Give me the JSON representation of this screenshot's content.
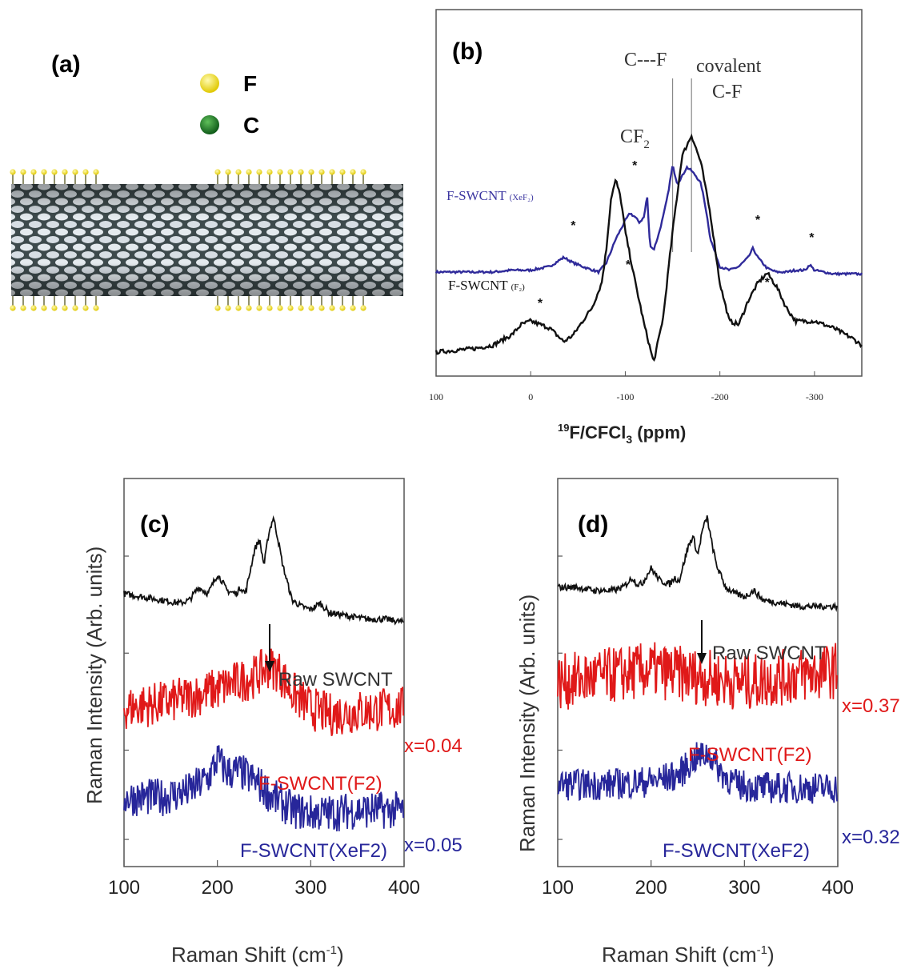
{
  "panels": {
    "a": {
      "label": "(a)",
      "legend": [
        {
          "symbol": "F",
          "color": "#f2dc1c"
        },
        {
          "symbol": "C",
          "color": "#1b7a2a"
        }
      ]
    },
    "b": {
      "label": "(b)",
      "xlabel_sup": "19",
      "xlabel_main": "F/CFCl",
      "xlabel_sub": "3",
      "xlabel_unit": " (ppm)",
      "annotations": {
        "cf": "C---F",
        "covalent1": "covalent",
        "covalent2": "C-F",
        "cf2_main": "CF",
        "cf2_sub": "2",
        "xef2_label": "F-SWCNT",
        "xef2_suffix": "(XeF₂)",
        "f2_label": "F-SWCNT",
        "f2_suffix": "(F₂)"
      }
    },
    "c": {
      "label": "(c)",
      "raw_label": "Raw SWCNT",
      "red_label": "F-SWCNT(F2)",
      "blue_label": "F-SWCNT(XeF2)",
      "red_x": "x=0.04",
      "blue_x": "x=0.05"
    },
    "d": {
      "label": "(d)",
      "raw_label": "Raw SWCNT",
      "red_label": "F-SWCNT(F2)",
      "blue_label": "F-SWCNT(XeF2)",
      "red_x": "x=0.37",
      "blue_x": "x=0.32"
    },
    "raman_ylabel": "Raman Intensity (Arb. units)",
    "raman_xlabel_main": "Raman Shift (cm",
    "raman_xlabel_sup": "-1",
    "raman_xlabel_end": ")"
  },
  "chart_data": [
    {
      "panel": "b",
      "type": "line",
      "xlim": [
        100,
        -350
      ],
      "xticks": [
        100,
        0,
        -100,
        -200,
        -300
      ],
      "xticklabels": [
        "100",
        "0",
        "-100",
        "-200",
        "-300"
      ],
      "peak_markers_ppm": [
        -150,
        -170
      ],
      "series": [
        {
          "name": "F-SWCNT (XeF₂)",
          "color": "#2f2a9a",
          "x": [
            100,
            60,
            40,
            20,
            0,
            -20,
            -35,
            -45,
            -60,
            -72,
            -80,
            -90,
            -100,
            -105,
            -110,
            -115,
            -120,
            -123,
            -126,
            -130,
            -135,
            -140,
            -145,
            -150,
            -155,
            -160,
            -165,
            -170,
            -175,
            -180,
            -185,
            -190,
            -200,
            -210,
            -220,
            -230,
            -235,
            -240,
            -250,
            -260,
            -270,
            -280,
            -290,
            -295,
            -300,
            -310,
            -320,
            -330,
            -350
          ],
          "y": [
            0.3,
            0.3,
            0.3,
            0.31,
            0.31,
            0.33,
            0.38,
            0.35,
            0.32,
            0.3,
            0.35,
            0.48,
            0.58,
            0.62,
            0.6,
            0.57,
            0.6,
            0.72,
            0.45,
            0.42,
            0.5,
            0.6,
            0.72,
            0.88,
            0.78,
            0.82,
            0.87,
            0.85,
            0.82,
            0.78,
            0.65,
            0.48,
            0.33,
            0.31,
            0.33,
            0.38,
            0.43,
            0.38,
            0.32,
            0.3,
            0.3,
            0.31,
            0.31,
            0.34,
            0.31,
            0.3,
            0.29,
            0.29,
            0.29
          ]
        },
        {
          "name": "F-SWCNT (F₂)",
          "color": "#111111",
          "x": [
            100,
            60,
            40,
            20,
            10,
            0,
            -20,
            -35,
            -45,
            -55,
            -65,
            -75,
            -80,
            -85,
            -90,
            -95,
            -100,
            -105,
            -110,
            -120,
            -130,
            -140,
            -150,
            -160,
            -170,
            -180,
            -190,
            -200,
            -210,
            -220,
            -230,
            -240,
            -250,
            -260,
            -270,
            -280,
            -290,
            -300,
            -320,
            -340,
            -350
          ],
          "y": [
            0.05,
            0.06,
            0.07,
            0.1,
            0.13,
            0.14,
            0.12,
            0.08,
            0.1,
            0.14,
            0.18,
            0.25,
            0.35,
            0.5,
            0.55,
            0.5,
            0.4,
            0.33,
            0.26,
            0.13,
            0.02,
            0.15,
            0.4,
            0.62,
            0.68,
            0.6,
            0.45,
            0.25,
            0.14,
            0.13,
            0.2,
            0.25,
            0.28,
            0.24,
            0.18,
            0.14,
            0.14,
            0.14,
            0.12,
            0.09,
            0.07
          ]
        }
      ]
    },
    {
      "panel": "c",
      "type": "line",
      "xlabel": "Raman Shift (cm-1)",
      "ylabel": "Raman Intensity (Arb. units)",
      "xlim": [
        100,
        400
      ],
      "xticks": [
        100,
        200,
        300,
        400
      ],
      "series": [
        {
          "name": "Raw SWCNT",
          "color": "#111111",
          "noise": 0.01,
          "x": [
            100,
            120,
            140,
            160,
            170,
            180,
            185,
            190,
            200,
            205,
            210,
            220,
            225,
            230,
            240,
            245,
            250,
            255,
            260,
            265,
            270,
            280,
            290,
            300,
            310,
            320,
            340,
            360,
            380,
            400
          ],
          "y": [
            0.76,
            0.75,
            0.74,
            0.73,
            0.74,
            0.78,
            0.77,
            0.76,
            0.82,
            0.8,
            0.77,
            0.76,
            0.78,
            0.76,
            0.9,
            0.93,
            0.85,
            0.95,
            1.0,
            0.93,
            0.85,
            0.74,
            0.72,
            0.71,
            0.73,
            0.7,
            0.69,
            0.68,
            0.68,
            0.67
          ]
        },
        {
          "name": "F-SWCNT(F2)",
          "color": "#e01919",
          "noise": 0.07,
          "x": [
            100,
            150,
            200,
            240,
            255,
            265,
            280,
            300,
            320,
            350,
            400
          ],
          "y": [
            0.4,
            0.42,
            0.46,
            0.5,
            0.53,
            0.52,
            0.45,
            0.4,
            0.38,
            0.39,
            0.4
          ]
        },
        {
          "name": "F-SWCNT(XeF2)",
          "color": "#27269a",
          "noise": 0.06,
          "x": [
            100,
            140,
            170,
            190,
            200,
            210,
            225,
            245,
            260,
            280,
            300,
            320,
            350,
            400
          ],
          "y": [
            0.12,
            0.12,
            0.14,
            0.18,
            0.24,
            0.2,
            0.2,
            0.16,
            0.12,
            0.08,
            0.07,
            0.07,
            0.08,
            0.08
          ]
        }
      ]
    },
    {
      "panel": "d",
      "type": "line",
      "xlabel": "Raman Shift (cm-1)",
      "ylabel": "Raman Intensity (Arb. units)",
      "xlim": [
        100,
        400
      ],
      "xticks": [
        100,
        200,
        300,
        400
      ],
      "series": [
        {
          "name": "Raw SWCNT",
          "color": "#111111",
          "noise": 0.01,
          "x": [
            100,
            120,
            140,
            160,
            170,
            180,
            185,
            190,
            200,
            205,
            210,
            220,
            225,
            230,
            240,
            245,
            250,
            255,
            260,
            265,
            270,
            280,
            290,
            300,
            310,
            320,
            340,
            360,
            380,
            400
          ],
          "y": [
            0.78,
            0.78,
            0.77,
            0.77,
            0.78,
            0.81,
            0.79,
            0.79,
            0.84,
            0.82,
            0.8,
            0.79,
            0.81,
            0.8,
            0.91,
            0.94,
            0.88,
            0.96,
            1.0,
            0.92,
            0.85,
            0.78,
            0.76,
            0.75,
            0.77,
            0.74,
            0.73,
            0.72,
            0.72,
            0.72
          ]
        },
        {
          "name": "F-SWCNT(F2)",
          "color": "#e01919",
          "noise": 0.09,
          "x": [
            100,
            150,
            200,
            250,
            300,
            350,
            400
          ],
          "y": [
            0.48,
            0.5,
            0.52,
            0.5,
            0.48,
            0.5,
            0.52
          ]
        },
        {
          "name": "F-SWCNT(XeF2)",
          "color": "#27269a",
          "noise": 0.05,
          "x": [
            100,
            150,
            200,
            230,
            245,
            255,
            262,
            275,
            290,
            320,
            360,
            400
          ],
          "y": [
            0.16,
            0.16,
            0.17,
            0.19,
            0.24,
            0.25,
            0.26,
            0.2,
            0.16,
            0.15,
            0.15,
            0.15
          ]
        }
      ]
    }
  ]
}
